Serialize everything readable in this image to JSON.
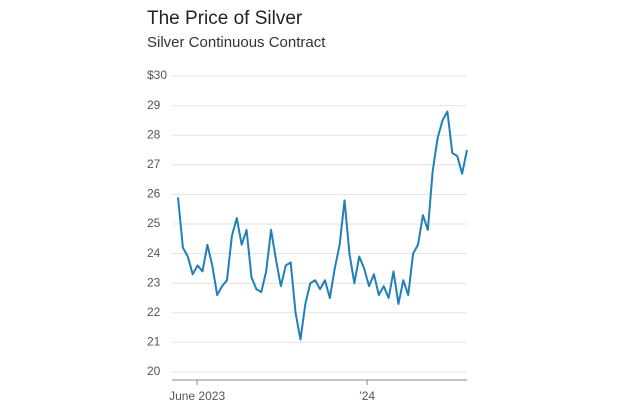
{
  "chart_data": {
    "type": "line",
    "title": "The Price of Silver",
    "subtitle": "Silver Continuous Contract",
    "series": [
      {
        "name": "Silver",
        "color": "#1f80b9",
        "values": [
          25.9,
          24.2,
          23.9,
          23.3,
          23.6,
          23.4,
          24.3,
          23.6,
          22.6,
          22.9,
          23.1,
          24.6,
          25.2,
          24.3,
          24.8,
          23.2,
          22.8,
          22.7,
          23.4,
          24.8,
          23.8,
          22.9,
          23.6,
          23.7,
          22.0,
          21.1,
          22.3,
          23.0,
          23.1,
          22.8,
          23.1,
          22.5,
          23.5,
          24.3,
          25.8,
          24.0,
          23.0,
          23.9,
          23.5,
          22.9,
          23.3,
          22.6,
          22.9,
          22.5,
          23.4,
          22.3,
          23.1,
          22.6,
          24.0,
          24.3,
          25.3,
          24.8,
          26.8,
          27.9,
          28.5,
          28.8,
          27.4,
          27.3,
          26.7,
          27.5
        ]
      }
    ],
    "xlim": [
      0,
      59
    ],
    "xticks": [
      {
        "value": 3.9,
        "label": "June 2023"
      },
      {
        "value": 38.6,
        "label": "’24"
      }
    ],
    "ylim": [
      20,
      30
    ],
    "yticks": [
      {
        "value": 30,
        "label": "$30"
      },
      29,
      28,
      27,
      26,
      25,
      24,
      23,
      22,
      21,
      20
    ],
    "grid": true
  }
}
